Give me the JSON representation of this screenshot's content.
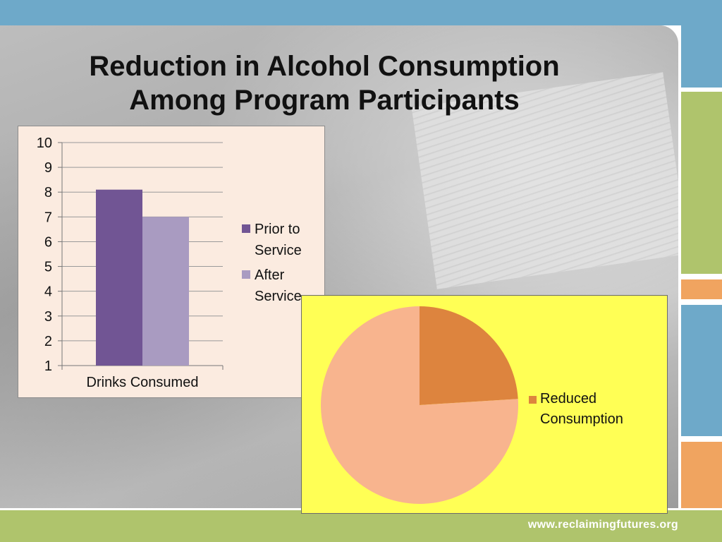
{
  "slide": {
    "title_line1": "Reduction in Alcohol Consumption",
    "title_line2": "Among Program Participants",
    "footer_url": "www.reclaimingfutures.org"
  },
  "colors": {
    "top_band": "#6ea9c9",
    "accent_green": "#afc46c",
    "accent_orange": "#f0a460",
    "bar_prior": "#715594",
    "bar_after": "#a99bc1",
    "pie_reduced": "#dd843e",
    "pie_other": "#f8b48e",
    "pie_background": "#ffff55",
    "bar_background": "#fbebe0"
  },
  "chart_data": [
    {
      "type": "bar",
      "categories": [
        "Drinks Consumed"
      ],
      "series": [
        {
          "name": "Prior to Service",
          "values": [
            8.1
          ],
          "color": "#715594"
        },
        {
          "name": "After Service",
          "values": [
            7.0
          ],
          "color": "#a99bc1"
        }
      ],
      "y_ticks": [
        "1",
        "2",
        "3",
        "4",
        "5",
        "6",
        "7",
        "8",
        "9",
        "10"
      ],
      "ylim": [
        1,
        10
      ],
      "grid": true,
      "legend": "right",
      "legend_labels": [
        {
          "line1": "Prior to",
          "line2": "Service"
        },
        {
          "line1": "After",
          "line2": "Service"
        }
      ]
    },
    {
      "type": "pie",
      "slices": [
        {
          "name": "Reduced Consumption",
          "value": 24,
          "color": "#dd843e"
        },
        {
          "name": "",
          "value": 76,
          "color": "#f8b48e"
        }
      ],
      "legend": "right",
      "legend_label": {
        "line1": "Reduced",
        "line2": "Consumption"
      }
    }
  ]
}
